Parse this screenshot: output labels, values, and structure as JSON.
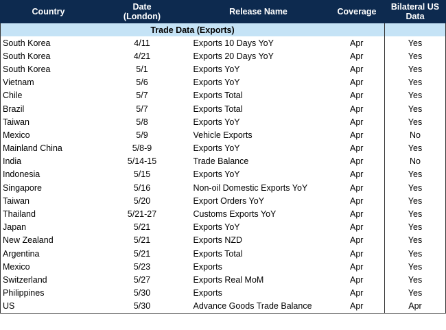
{
  "headers": {
    "country": "Country",
    "date_line1": "Date",
    "date_line2": "(London)",
    "release": "Release Name",
    "coverage": "Coverage",
    "bilateral_line1": "Bilateral US",
    "bilateral_line2": "Data"
  },
  "section": "Trade Data (Exports)",
  "rows": [
    {
      "country": "South Korea",
      "date": "4/11",
      "release": "Exports 10 Days YoY",
      "coverage": "Apr",
      "bilateral": "Yes"
    },
    {
      "country": "South Korea",
      "date": "4/21",
      "release": "Exports 20 Days YoY",
      "coverage": "Apr",
      "bilateral": "Yes"
    },
    {
      "country": "South Korea",
      "date": "5/1",
      "release": "Exports YoY",
      "coverage": "Apr",
      "bilateral": "Yes"
    },
    {
      "country": "Vietnam",
      "date": "5/6",
      "release": "Exports YoY",
      "coverage": "Apr",
      "bilateral": "Yes"
    },
    {
      "country": "Chile",
      "date": "5/7",
      "release": "Exports Total",
      "coverage": "Apr",
      "bilateral": "Yes"
    },
    {
      "country": "Brazil",
      "date": "5/7",
      "release": "Exports Total",
      "coverage": "Apr",
      "bilateral": "Yes"
    },
    {
      "country": "Taiwan",
      "date": "5/8",
      "release": "Exports YoY",
      "coverage": "Apr",
      "bilateral": "Yes"
    },
    {
      "country": "Mexico",
      "date": "5/9",
      "release": "Vehicle Exports",
      "coverage": "Apr",
      "bilateral": "No"
    },
    {
      "country": "Mainland China",
      "date": "5/8-9",
      "release": "Exports YoY",
      "coverage": "Apr",
      "bilateral": "Yes"
    },
    {
      "country": "India",
      "date": "5/14-15",
      "release": "Trade Balance",
      "coverage": "Apr",
      "bilateral": "No"
    },
    {
      "country": "Indonesia",
      "date": "5/15",
      "release": "Exports YoY",
      "coverage": "Apr",
      "bilateral": "Yes"
    },
    {
      "country": "Singapore",
      "date": "5/16",
      "release": "Non-oil Domestic Exports YoY",
      "coverage": "Apr",
      "bilateral": "Yes"
    },
    {
      "country": "Taiwan",
      "date": "5/20",
      "release": "Export Orders YoY",
      "coverage": "Apr",
      "bilateral": "Yes"
    },
    {
      "country": "Thailand",
      "date": "5/21-27",
      "release": "Customs Exports YoY",
      "coverage": "Apr",
      "bilateral": "Yes"
    },
    {
      "country": "Japan",
      "date": "5/21",
      "release": "Exports YoY",
      "coverage": "Apr",
      "bilateral": "Yes"
    },
    {
      "country": "New Zealand",
      "date": "5/21",
      "release": "Exports NZD",
      "coverage": "Apr",
      "bilateral": "Yes"
    },
    {
      "country": "Argentina",
      "date": "5/21",
      "release": "Exports Total",
      "coverage": "Apr",
      "bilateral": "Yes"
    },
    {
      "country": "Mexico",
      "date": "5/23",
      "release": "Exports",
      "coverage": "Apr",
      "bilateral": "Yes"
    },
    {
      "country": "Switzerland",
      "date": "5/27",
      "release": "Exports Real MoM",
      "coverage": "Apr",
      "bilateral": "Yes"
    },
    {
      "country": "Philippines",
      "date": "5/30",
      "release": "Exports",
      "coverage": "Apr",
      "bilateral": "Yes"
    },
    {
      "country": "US",
      "date": "5/30",
      "release": "Advance Goods Trade Balance",
      "coverage": "Apr",
      "bilateral": "Apr"
    }
  ]
}
